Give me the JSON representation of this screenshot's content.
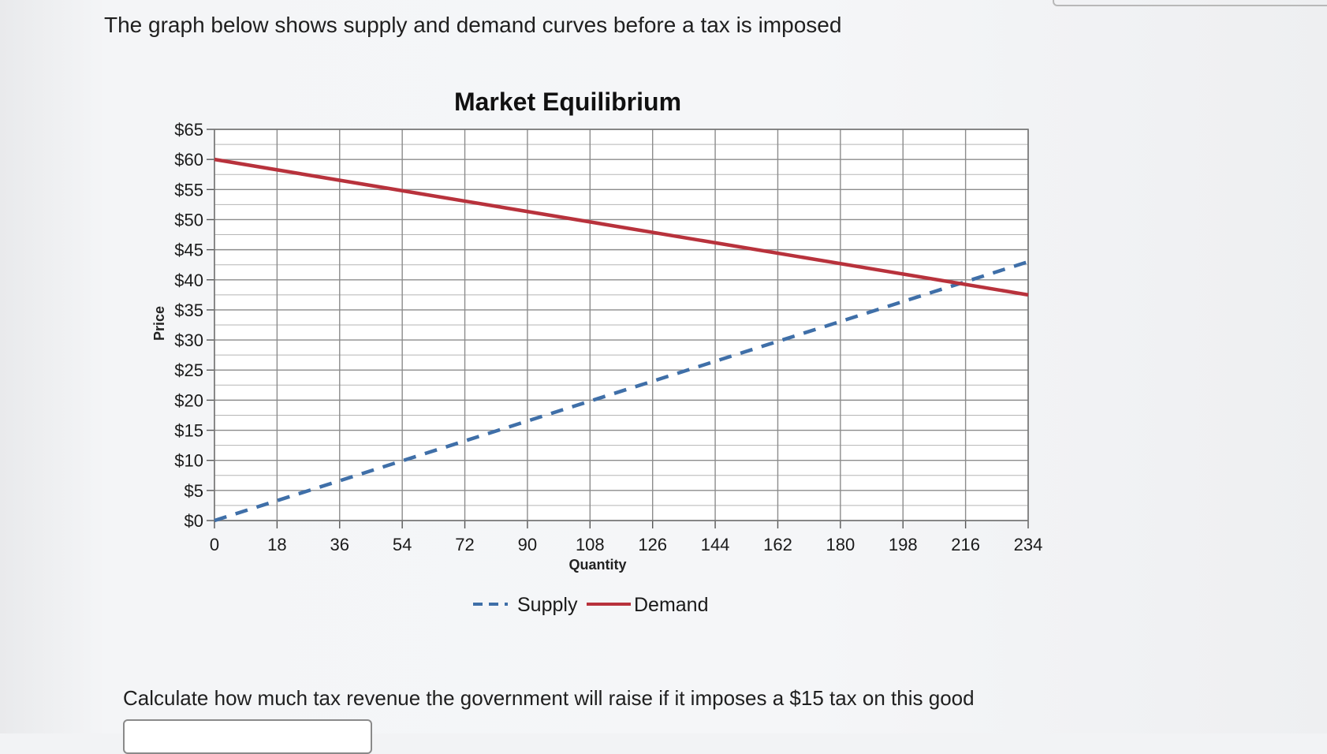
{
  "question": {
    "intro": "The graph below shows supply and demand curves before a tax is imposed",
    "prompt": "Calculate how much tax revenue the government will raise if it imposes a $15 tax on this good"
  },
  "chart_data": {
    "type": "line",
    "title": "Market Equilibrium",
    "xlabel": "Quantity",
    "ylabel": "Price",
    "x_ticks": [
      0,
      18,
      36,
      54,
      72,
      90,
      108,
      126,
      144,
      162,
      180,
      198,
      216,
      234
    ],
    "y_ticks": [
      0,
      5,
      10,
      15,
      20,
      25,
      30,
      35,
      40,
      45,
      50,
      55,
      60,
      65
    ],
    "y_tick_labels": [
      "$0",
      "$5",
      "$10",
      "$15",
      "$20",
      "$25",
      "$30",
      "$35",
      "$40",
      "$45",
      "$50",
      "$55",
      "$60",
      "$65"
    ],
    "xlim": [
      0,
      234
    ],
    "ylim": [
      0,
      65
    ],
    "grid": true,
    "legend_position": "bottom",
    "series": [
      {
        "name": "Supply",
        "style": "dashed",
        "color": "#3f6fa8",
        "x": [
          0,
          234
        ],
        "y": [
          0,
          43
        ]
      },
      {
        "name": "Demand",
        "style": "solid",
        "color": "#b8323c",
        "x": [
          0,
          234
        ],
        "y": [
          60,
          37.5
        ]
      }
    ]
  }
}
